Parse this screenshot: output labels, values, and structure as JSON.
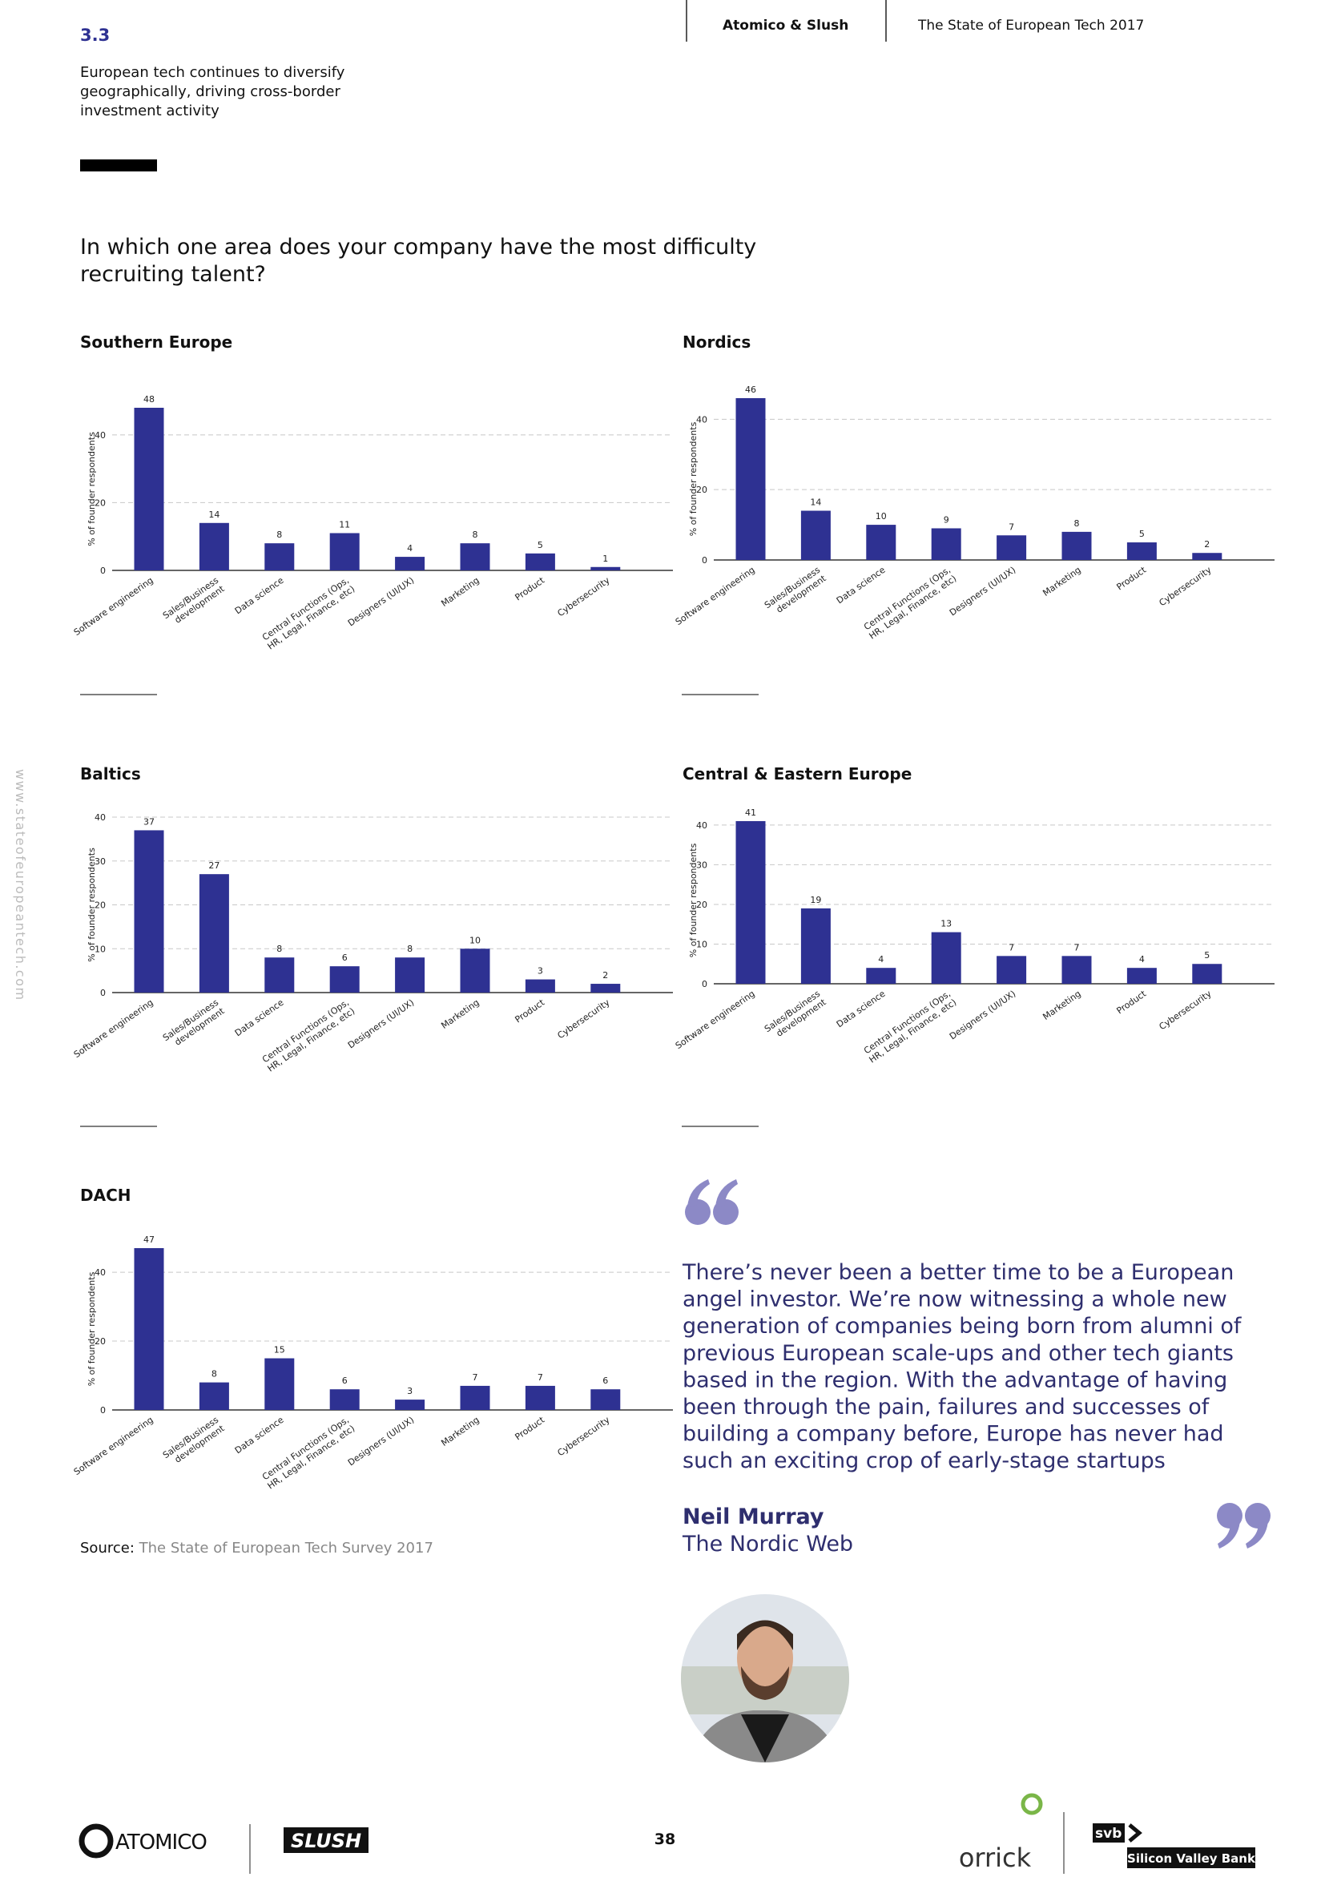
{
  "header": {
    "section": "3.3",
    "subtitle_lines": [
      "European tech continues to diversify",
      "geographically, driving cross-border",
      "investment activity"
    ],
    "partners": "Atomico & Slush",
    "publication": "The State of European Tech 2017"
  },
  "side_url": "www.stateofeuropeantech.com",
  "question_lines": [
    "In which one area does your company have the most difficulty",
    "recruiting talent?"
  ],
  "chart_data": [
    {
      "type": "bar",
      "title": "Southern Europe",
      "y_label": "% of founder respondents",
      "color": "#2e3192",
      "grid": true,
      "categories": [
        "Software engineering",
        "Sales/Business\ndevelopment",
        "Data science",
        "Central Functions (Ops,\nHR, Legal, Finance, etc)",
        "Designers (UI/UX)",
        "Marketing",
        "Product",
        "Cybersecurity"
      ],
      "values": [
        48,
        14,
        8,
        11,
        4,
        8,
        5,
        1
      ],
      "ylim": [
        0,
        48
      ],
      "yticks": [
        0,
        20,
        40
      ]
    },
    {
      "type": "bar",
      "title": "Nordics",
      "y_label": "% of founder respondents",
      "color": "#2e3192",
      "grid": true,
      "categories": [
        "Software engineering",
        "Sales/Business\ndevelopment",
        "Data science",
        "Central Functions (Ops,\nHR, Legal, Finance, etc)",
        "Designers (UI/UX)",
        "Marketing",
        "Product",
        "Cybersecurity"
      ],
      "values": [
        46,
        14,
        10,
        9,
        7,
        8,
        5,
        2
      ],
      "ylim": [
        0,
        46
      ],
      "yticks": [
        0,
        20,
        40
      ]
    },
    {
      "type": "bar",
      "title": "Baltics",
      "y_label": "% of founder respondents",
      "color": "#2e3192",
      "grid": true,
      "categories": [
        "Software engineering",
        "Sales/Business\ndevelopment",
        "Data science",
        "Central Functions (Ops,\nHR, Legal, Finance, etc)",
        "Designers (UI/UX)",
        "Marketing",
        "Product",
        "Cybersecurity"
      ],
      "values": [
        37,
        27,
        8,
        6,
        8,
        10,
        3,
        2
      ],
      "ylim": [
        0,
        40
      ],
      "yticks": [
        0,
        10,
        20,
        30,
        40
      ]
    },
    {
      "type": "bar",
      "title": "Central & Eastern Europe",
      "y_label": "% of founder respondents",
      "color": "#2e3192",
      "grid": true,
      "categories": [
        "Software engineering",
        "Sales/Business\ndevelopment",
        "Data science",
        "Central Functions (Ops,\nHR, Legal, Finance, etc)",
        "Designers (UI/UX)",
        "Marketing",
        "Product",
        "Cybersecurity"
      ],
      "values": [
        41,
        19,
        4,
        13,
        7,
        7,
        4,
        5
      ],
      "ylim": [
        0,
        42
      ],
      "yticks": [
        0,
        10,
        20,
        30,
        40
      ]
    },
    {
      "type": "bar",
      "title": "DACH",
      "y_label": "% of founder respondents",
      "color": "#2e3192",
      "grid": true,
      "categories": [
        "Software engineering",
        "Sales/Business\ndevelopment",
        "Data science",
        "Central Functions (Ops,\nHR, Legal, Finance, etc)",
        "Designers (UI/UX)",
        "Marketing",
        "Product",
        "Cybersecurity"
      ],
      "values": [
        47,
        8,
        15,
        6,
        3,
        7,
        7,
        6
      ],
      "ylim": [
        0,
        47
      ],
      "yticks": [
        0,
        20,
        40
      ]
    }
  ],
  "source": {
    "label": "Source:",
    "text": "The State of European Tech Survey 2017"
  },
  "quote": {
    "lines": [
      "There’s never been a better time to be a European",
      "angel investor. We’re now witnessing a whole new",
      "generation of companies being born from alumni of",
      "previous European scale-ups and other tech giants",
      "based in the region. With the advantage of having",
      "been through the pain, failures and successes of",
      "building a company before, Europe has never had",
      "such an exciting crop of early-stage startups"
    ],
    "author": "Neil Murray",
    "organization": "The Nordic Web"
  },
  "footer": {
    "page_number": 38,
    "logos": [
      "ATOMICO",
      "SLUSH",
      "orrick",
      "svb",
      "Silicon Valley Bank"
    ]
  }
}
